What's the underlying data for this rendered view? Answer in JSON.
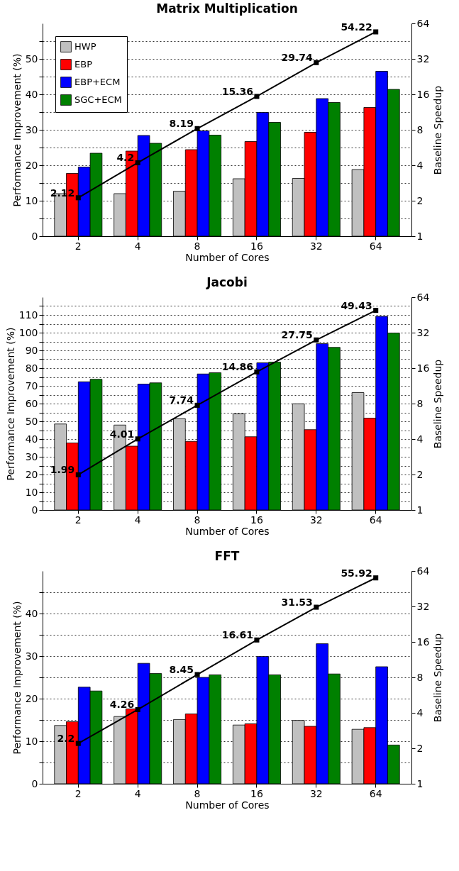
{
  "chart_data": [
    {
      "type": "bar",
      "title": "Matrix Multiplication",
      "xlabel": "Number of Cores",
      "ylabel": "Performance Improvement (%)",
      "y2label": "Baseline Speedup",
      "categories": [
        "2",
        "4",
        "8",
        "16",
        "32",
        "64"
      ],
      "series": [
        {
          "name": "HWP",
          "color": "#c0c0c0",
          "values": [
            12.0,
            12.0,
            12.7,
            16.2,
            16.3,
            18.8
          ]
        },
        {
          "name": "EBP",
          "color": "#ff0000",
          "values": [
            17.7,
            24.0,
            24.4,
            26.7,
            29.3,
            36.3
          ]
        },
        {
          "name": "EBP+ECM",
          "color": "#0000ff",
          "values": [
            19.5,
            28.4,
            29.7,
            34.9,
            38.8,
            46.5
          ]
        },
        {
          "name": "SGC+ECM",
          "color": "#008000",
          "values": [
            23.4,
            26.2,
            28.5,
            32.1,
            37.7,
            41.4
          ]
        },
        {
          "type": "line",
          "axis": "y2",
          "color": "#000000",
          "marker": "square",
          "values": [
            2.12,
            4.2,
            8.19,
            15.36,
            29.74,
            54.22
          ],
          "value_labels": [
            "2.12",
            "4.2",
            "8.19",
            "15.36",
            "29.74",
            "54.22"
          ]
        }
      ],
      "ylim": [
        0,
        60
      ],
      "yticks": [
        0,
        {
          "value": 5,
          "label": null
        },
        10,
        {
          "value": 15,
          "label": null
        },
        20,
        {
          "value": 25,
          "label": null
        },
        30,
        {
          "value": 35,
          "label": null
        },
        40,
        {
          "value": 45,
          "label": null
        },
        50,
        {
          "value": 55,
          "label": null
        }
      ],
      "y2lim": [
        1,
        64
      ],
      "y2ticks": [
        1,
        2,
        4,
        8,
        16,
        32,
        64
      ],
      "log": "y2",
      "grid": "y",
      "legend": "top left"
    },
    {
      "type": "bar",
      "title": "Jacobi",
      "xlabel": "Number of Cores",
      "ylabel": "Performance Improvement (%)",
      "y2label": "Baseline Speedup",
      "categories": [
        "2",
        "4",
        "8",
        "16",
        "32",
        "64"
      ],
      "series": [
        {
          "name": "HWP",
          "color": "#c0c0c0",
          "values": [
            48.5,
            47.9,
            51.5,
            54.2,
            59.9,
            66.2
          ]
        },
        {
          "name": "EBP",
          "color": "#ff0000",
          "values": [
            37.8,
            36.0,
            38.7,
            41.3,
            45.3,
            51.8
          ]
        },
        {
          "name": "EBP+ECM",
          "color": "#0000ff",
          "values": [
            72.3,
            71.0,
            76.7,
            83.0,
            93.8,
            109.2
          ]
        },
        {
          "name": "SGC+ECM",
          "color": "#008000",
          "values": [
            73.7,
            71.7,
            77.4,
            83.4,
            91.7,
            99.8
          ]
        },
        {
          "type": "line",
          "axis": "y2",
          "color": "#000000",
          "marker": "square",
          "values": [
            1.99,
            4.01,
            7.74,
            14.86,
            27.75,
            49.43
          ],
          "value_labels": [
            "1.99",
            "4.01",
            "7.74",
            "14.86",
            "27.75",
            "49.43"
          ]
        }
      ],
      "ylim": [
        0,
        120
      ],
      "yticks": [
        0,
        {
          "value": 5,
          "label": null
        },
        10,
        {
          "value": 15,
          "label": null
        },
        20,
        {
          "value": 25,
          "label": null
        },
        30,
        {
          "value": 35,
          "label": null
        },
        40,
        {
          "value": 45,
          "label": null
        },
        50,
        {
          "value": 55,
          "label": null
        },
        60,
        {
          "value": 65,
          "label": null
        },
        70,
        {
          "value": 75,
          "label": null
        },
        80,
        {
          "value": 85,
          "label": null
        },
        90,
        {
          "value": 95,
          "label": null
        },
        100,
        {
          "value": 105,
          "label": null
        },
        110,
        {
          "value": 115,
          "label": null
        }
      ],
      "y2lim": [
        1,
        64
      ],
      "y2ticks": [
        1,
        2,
        4,
        8,
        16,
        32,
        64
      ],
      "log": "y2",
      "grid": "y",
      "legend": "top left"
    },
    {
      "type": "bar",
      "title": "FFT",
      "xlabel": "Number of Cores",
      "ylabel": "Performance Improvement (%)",
      "y2label": "Baseline Speedup",
      "categories": [
        "2",
        "4",
        "8",
        "16",
        "32",
        "64"
      ],
      "series": [
        {
          "name": "HWP",
          "color": "#c0c0c0",
          "values": [
            13.7,
            15.8,
            15.1,
            13.8,
            14.9,
            12.8
          ]
        },
        {
          "name": "EBP",
          "color": "#ff0000",
          "values": [
            14.6,
            17.6,
            16.4,
            14.1,
            13.5,
            13.2
          ]
        },
        {
          "name": "EBP+ECM",
          "color": "#0000ff",
          "values": [
            22.7,
            28.3,
            25.0,
            29.9,
            32.9,
            27.5
          ]
        },
        {
          "name": "SGC+ECM",
          "color": "#008000",
          "values": [
            21.8,
            25.9,
            25.6,
            25.6,
            25.8,
            9.1
          ]
        },
        {
          "type": "line",
          "axis": "y2",
          "color": "#000000",
          "marker": "square",
          "values": [
            2.2,
            4.26,
            8.45,
            16.61,
            31.53,
            55.92
          ],
          "value_labels": [
            "2.2",
            "4.26",
            "8.45",
            "16.61",
            "31.53",
            "55.92"
          ]
        }
      ],
      "ylim": [
        0,
        50
      ],
      "yticks": [
        0,
        {
          "value": 5,
          "label": null
        },
        10,
        {
          "value": 15,
          "label": null
        },
        20,
        {
          "value": 25,
          "label": null
        },
        30,
        {
          "value": 35,
          "label": null
        },
        40,
        {
          "value": 45,
          "label": null
        }
      ],
      "y2lim": [
        1,
        64
      ],
      "y2ticks": [
        1,
        2,
        4,
        8,
        16,
        32,
        64
      ],
      "log": "y2",
      "grid": "y",
      "legend": "top left"
    }
  ]
}
